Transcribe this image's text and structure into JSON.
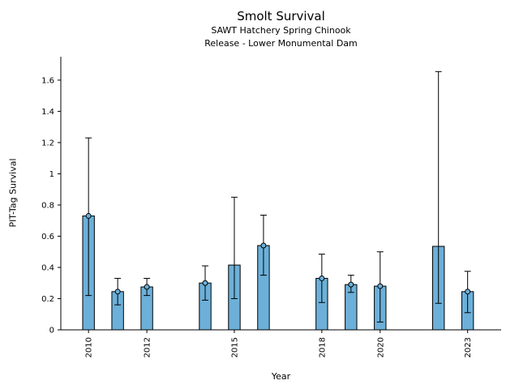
{
  "chart_data": {
    "type": "bar",
    "title": "Smolt Survival",
    "subtitle1": "SAWT Hatchery Spring Chinook",
    "subtitle2": "Release - Lower Monumental Dam",
    "xlabel": "Year",
    "ylabel": "PIT-Tag Survival",
    "xlim": [
      2009.05,
      2024.15
    ],
    "ylim": [
      0,
      1.75
    ],
    "x_ticks": [
      2010,
      2012,
      2015,
      2018,
      2020,
      2023
    ],
    "y_ticks": [
      0,
      0.2,
      0.4,
      0.6,
      0.8,
      1.0,
      1.2,
      1.4,
      1.6
    ],
    "y_tick_labels": [
      "0",
      "0.2",
      "0.4",
      "0.6",
      "0.8",
      "1",
      "1.2",
      "1.4",
      "1.6"
    ],
    "bar_color": "#6CB0D9",
    "bar_edge_color": "#000000",
    "error_bar_color": "#000000",
    "bar_width_years": 0.4,
    "grid": false,
    "legend": "none",
    "series": [
      {
        "year": 2010,
        "value": 0.73,
        "err_low": 0.22,
        "err_high": 1.23,
        "marker": true
      },
      {
        "year": 2011,
        "value": 0.245,
        "err_low": 0.16,
        "err_high": 0.33,
        "marker": true
      },
      {
        "year": 2012,
        "value": 0.275,
        "err_low": 0.22,
        "err_high": 0.33,
        "marker": true
      },
      {
        "year": 2014,
        "value": 0.3,
        "err_low": 0.19,
        "err_high": 0.41,
        "marker": true
      },
      {
        "year": 2015,
        "value": 0.415,
        "err_low": 0.2,
        "err_high": 0.85,
        "marker": false
      },
      {
        "year": 2016,
        "value": 0.54,
        "err_low": 0.35,
        "err_high": 0.735,
        "marker": true
      },
      {
        "year": 2018,
        "value": 0.33,
        "err_low": 0.175,
        "err_high": 0.485,
        "marker": true
      },
      {
        "year": 2019,
        "value": 0.29,
        "err_low": 0.24,
        "err_high": 0.35,
        "marker": true
      },
      {
        "year": 2020,
        "value": 0.28,
        "err_low": 0.05,
        "err_high": 0.5,
        "marker": true
      },
      {
        "year": 2022,
        "value": 0.535,
        "err_low": 0.17,
        "err_high": 1.655,
        "marker": false
      },
      {
        "year": 2023,
        "value": 0.245,
        "err_low": 0.11,
        "err_high": 0.375,
        "marker": true
      }
    ]
  }
}
